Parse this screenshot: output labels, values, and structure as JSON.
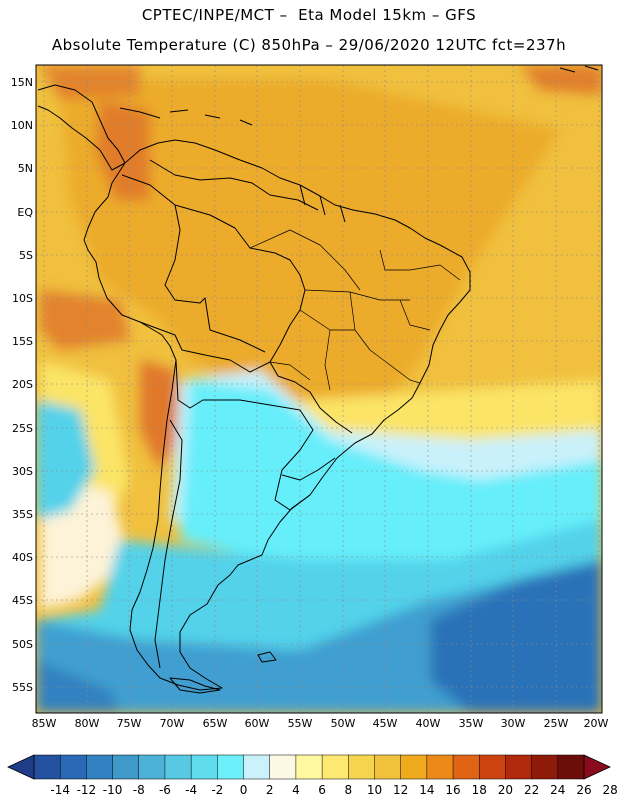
{
  "title_line1": "CPTEC/INPE/MCT –  Eta Model 15km – GFS",
  "title_line2": "Absolute Temperature (C) 850hPa – 29/06/2020 12UTC fct=237h",
  "lat_labels": [
    "15N",
    "10N",
    "5N",
    "EQ",
    "5S",
    "10S",
    "15S",
    "20S",
    "25S",
    "30S",
    "35S",
    "40S",
    "45S",
    "50S",
    "55S"
  ],
  "lon_labels": [
    "85W",
    "80W",
    "75W",
    "70W",
    "65W",
    "60W",
    "55W",
    "50W",
    "45W",
    "40W",
    "35W",
    "30W",
    "25W",
    "20W"
  ],
  "colorbar": {
    "labels": [
      "-14",
      "-12",
      "-10",
      "-8",
      "-6",
      "-4",
      "-2",
      "0",
      "2",
      "4",
      "6",
      "8",
      "10",
      "12",
      "14",
      "16",
      "18",
      "20",
      "22",
      "24",
      "26",
      "28"
    ],
    "colors": [
      "#1f3c88",
      "#2452a0",
      "#2a69b3",
      "#3381c0",
      "#3f9ac9",
      "#4cb2d6",
      "#57c9e2",
      "#5fdcee",
      "#6ceff8",
      "#cbf1fb",
      "#fdf8e4",
      "#fef8a0",
      "#fde872",
      "#f6d54e",
      "#f0c13b",
      "#efaa1e",
      "#eb8a19",
      "#e06414",
      "#cd4310",
      "#b0290c",
      "#8e1a0a",
      "#6b0e0a",
      "#8a0b1e"
    ]
  },
  "colors": {
    "warm_orange": "#ecab2c",
    "warm_yellow": "#f0c03e",
    "light_yellow": "#fbe466",
    "cream": "#fdf3d8",
    "pale_cyan": "#c9f1fb",
    "cyan": "#66eefa",
    "mid_cyan": "#52d2ea",
    "blue": "#3f9fd0",
    "deep_blue": "#2c72b8",
    "dark_orange": "#e0782a",
    "red": "#c8420f",
    "border": "#000000"
  }
}
